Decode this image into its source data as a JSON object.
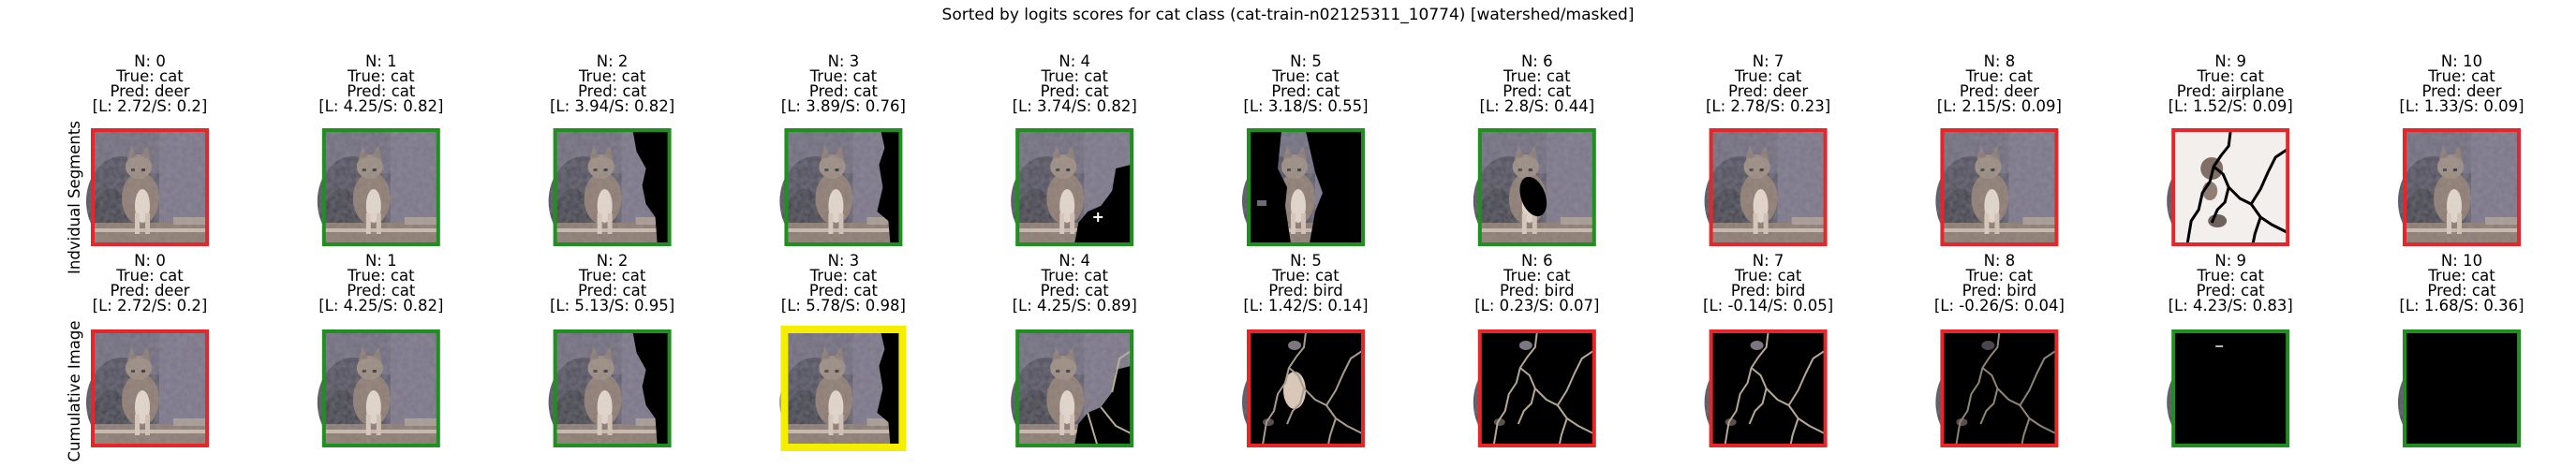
{
  "figure": {
    "title": "Sorted by logits scores for cat class (cat-train-n02125311_10774) [watershed/masked]",
    "row_labels": [
      "Indvidual Segments",
      "Cumulative Image"
    ]
  },
  "chart_data": {
    "type": "image_grid",
    "title": "Sorted by logits scores for cat class (cat-train-n02125311_10774) [watershed/masked]",
    "border_colors": {
      "correct": "#1f8f1f",
      "wrong": "#e8262a",
      "best": "#f5ee00"
    },
    "rows": [
      {
        "label": "Indvidual Segments",
        "panels": [
          {
            "n": 0,
            "true": "cat",
            "pred": "deer",
            "logit": "2.72",
            "score": "0.2",
            "border": "wrong",
            "mask": "full"
          },
          {
            "n": 1,
            "true": "cat",
            "pred": "cat",
            "logit": "4.25",
            "score": "0.82",
            "border": "correct",
            "mask": "full"
          },
          {
            "n": 2,
            "true": "cat",
            "pred": "cat",
            "logit": "3.94",
            "score": "0.82",
            "border": "correct",
            "mask": "right_black"
          },
          {
            "n": 3,
            "true": "cat",
            "pred": "cat",
            "logit": "3.89",
            "score": "0.76",
            "border": "correct",
            "mask": "right_strip"
          },
          {
            "n": 4,
            "true": "cat",
            "pred": "cat",
            "logit": "3.74",
            "score": "0.82",
            "border": "correct",
            "mask": "bottom_right"
          },
          {
            "n": 5,
            "true": "cat",
            "pred": "cat",
            "logit": "3.18",
            "score": "0.55",
            "border": "correct",
            "mask": "left_black"
          },
          {
            "n": 6,
            "true": "cat",
            "pred": "cat",
            "logit": "2.8",
            "score": "0.44",
            "border": "correct",
            "mask": "body_hole"
          },
          {
            "n": 7,
            "true": "cat",
            "pred": "deer",
            "logit": "2.78",
            "score": "0.23",
            "border": "wrong",
            "mask": "full"
          },
          {
            "n": 8,
            "true": "cat",
            "pred": "deer",
            "logit": "2.15",
            "score": "0.09",
            "border": "wrong",
            "mask": "full"
          },
          {
            "n": 9,
            "true": "cat",
            "pred": "airplane",
            "logit": "1.52",
            "score": "0.09",
            "border": "wrong",
            "mask": "lines_pale"
          },
          {
            "n": 10,
            "true": "cat",
            "pred": "deer",
            "logit": "1.33",
            "score": "0.09",
            "border": "wrong",
            "mask": "full"
          }
        ]
      },
      {
        "label": "Cumulative Image",
        "panels": [
          {
            "n": 0,
            "true": "cat",
            "pred": "deer",
            "logit": "2.72",
            "score": "0.2",
            "border": "wrong",
            "mask": "full"
          },
          {
            "n": 1,
            "true": "cat",
            "pred": "cat",
            "logit": "4.25",
            "score": "0.82",
            "border": "correct",
            "mask": "full"
          },
          {
            "n": 2,
            "true": "cat",
            "pred": "cat",
            "logit": "5.13",
            "score": "0.95",
            "border": "correct",
            "mask": "right_black"
          },
          {
            "n": 3,
            "true": "cat",
            "pred": "cat",
            "logit": "5.78",
            "score": "0.98",
            "border": "best",
            "mask": "right_strip"
          },
          {
            "n": 4,
            "true": "cat",
            "pred": "cat",
            "logit": "4.25",
            "score": "0.89",
            "border": "correct",
            "mask": "bottom_right_lines"
          },
          {
            "n": 5,
            "true": "cat",
            "pred": "bird",
            "logit": "1.42",
            "score": "0.14",
            "border": "wrong",
            "mask": "lines_body"
          },
          {
            "n": 6,
            "true": "cat",
            "pred": "bird",
            "logit": "0.23",
            "score": "0.07",
            "border": "wrong",
            "mask": "lines"
          },
          {
            "n": 7,
            "true": "cat",
            "pred": "bird",
            "logit": "-0.14",
            "score": "0.05",
            "border": "wrong",
            "mask": "lines"
          },
          {
            "n": 8,
            "true": "cat",
            "pred": "bird",
            "logit": "-0.26",
            "score": "0.04",
            "border": "wrong",
            "mask": "lines_faint"
          },
          {
            "n": 9,
            "true": "cat",
            "pred": "cat",
            "logit": "4.23",
            "score": "0.83",
            "border": "correct",
            "mask": "black_dash"
          },
          {
            "n": 10,
            "true": "cat",
            "pred": "cat",
            "logit": "1.68",
            "score": "0.36",
            "border": "correct",
            "mask": "black"
          }
        ]
      }
    ]
  }
}
